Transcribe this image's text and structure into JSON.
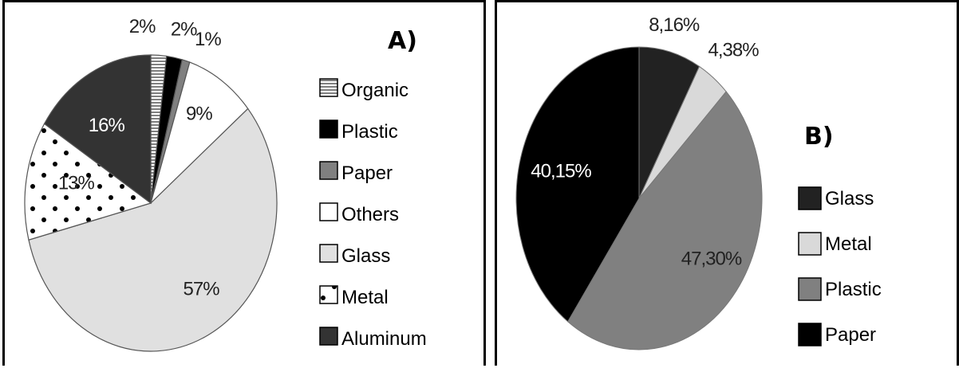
{
  "chart_data": [
    {
      "type": "pie",
      "panel_label": "A)",
      "slices": [
        {
          "name": "Organic",
          "value": 2,
          "label": "2%",
          "color": "#ffffff",
          "pattern": "hlines"
        },
        {
          "name": "Plastic",
          "value": 2,
          "label": "2%",
          "color": "#000000"
        },
        {
          "name": "Paper",
          "value": 1,
          "label": "1%",
          "color": "#808080"
        },
        {
          "name": "Others",
          "value": 9,
          "label": "9%",
          "color": "#ffffff"
        },
        {
          "name": "Glass",
          "value": 57,
          "label": "57%",
          "color": "#e0e0e0"
        },
        {
          "name": "Metal",
          "value": 13,
          "label": "13%",
          "color": "#ffffff",
          "pattern": "dots"
        },
        {
          "name": "Aluminum",
          "value": 16,
          "label": "16%",
          "color": "#333333"
        }
      ],
      "legend": [
        "Organic",
        "Plastic",
        "Paper",
        "Others",
        "Glass",
        "Metal",
        "Aluminum"
      ],
      "legend_placement": "right"
    },
    {
      "type": "pie",
      "panel_label": "B)",
      "slices": [
        {
          "name": "Glass",
          "value": 8.16,
          "label": "8,16%",
          "color": "#222222"
        },
        {
          "name": "Metal",
          "value": 4.38,
          "label": "4,38%",
          "color": "#d9d9d9"
        },
        {
          "name": "Plastic",
          "value": 47.3,
          "label": "47,30%",
          "color": "#808080"
        },
        {
          "name": "Paper",
          "value": 40.15,
          "label": "40,15%",
          "color": "#000000"
        }
      ],
      "legend": [
        "Glass",
        "Metal",
        "Plastic",
        "Paper"
      ],
      "legend_placement": "right"
    }
  ]
}
